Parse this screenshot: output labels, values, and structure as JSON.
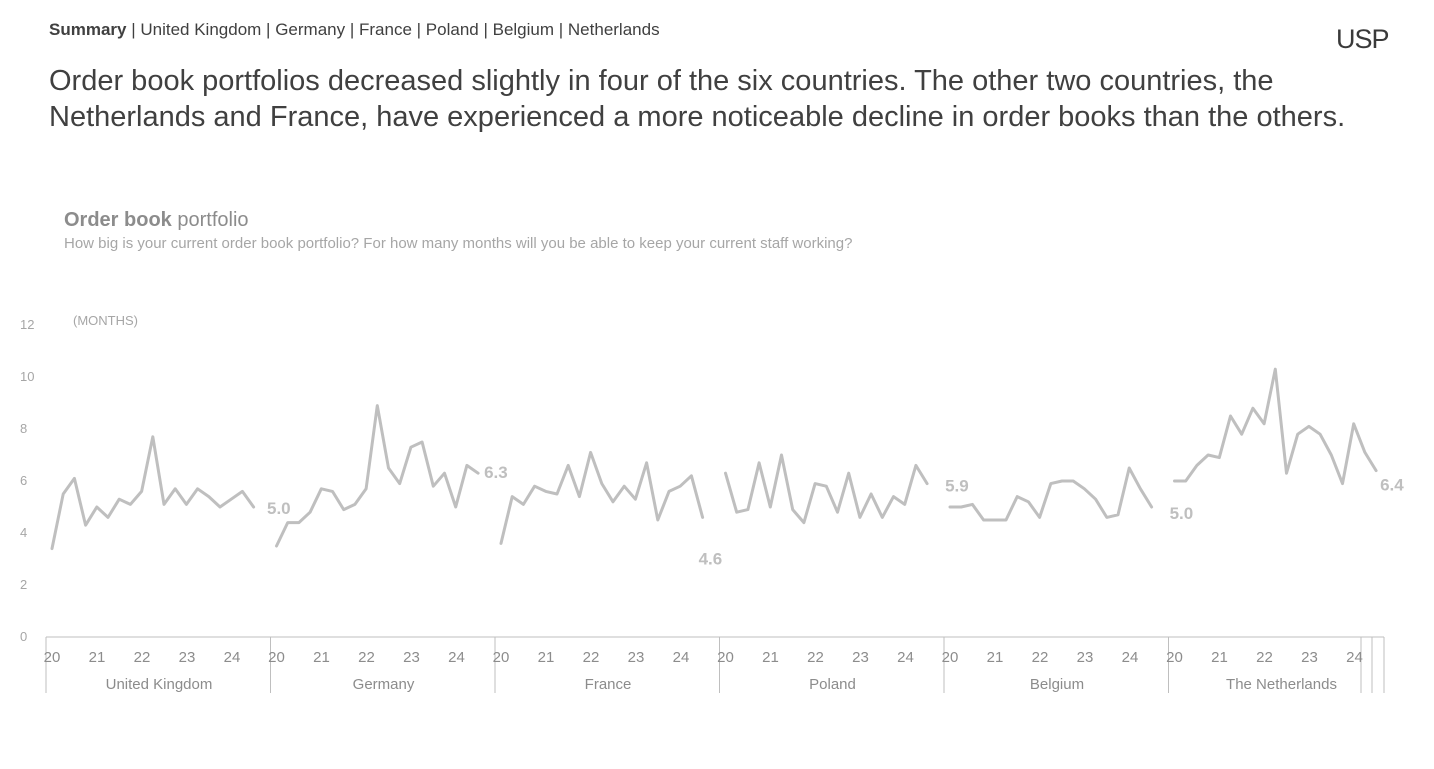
{
  "nav": {
    "items": [
      "Summary",
      "United Kingdom",
      "Germany",
      "France",
      "Poland",
      "Belgium",
      "Netherlands"
    ],
    "active": "Summary",
    "separator": "|"
  },
  "logo": {
    "text": "USP"
  },
  "headline": "Order book portfolios decreased slightly in four of the six countries. The other two countries, the Netherlands and France, have experienced a more noticeable decline in order books than the others.",
  "chart_data": {
    "type": "line",
    "title_bold": "Order book",
    "title_rest": " portfolio",
    "subtitle": "How big is your current order book portfolio? For how many months will you be able to keep your current staff working?",
    "unit_label": "(MONTHS)",
    "ylim": [
      0,
      12
    ],
    "yticks": [
      "0",
      "2",
      "4",
      "6",
      "8",
      "10",
      "12"
    ],
    "year_ticks": [
      "20",
      "21",
      "22",
      "23",
      "24"
    ],
    "line_color": "#bfbfbf",
    "series": [
      {
        "name": "United Kingdom",
        "last_label": "",
        "values": [
          3.4,
          5.5,
          6.1,
          4.3,
          5.0,
          4.6,
          5.3,
          5.1,
          5.6,
          7.7,
          5.1,
          5.7,
          5.1,
          5.7,
          5.4,
          5.0,
          5.3,
          5.6,
          5.0
        ]
      },
      {
        "name": "Germany",
        "last_label": "6.3",
        "values": [
          3.5,
          4.4,
          4.4,
          4.8,
          5.7,
          5.6,
          4.9,
          5.1,
          5.7,
          8.9,
          6.5,
          5.9,
          7.3,
          7.5,
          5.8,
          6.3,
          5.0,
          6.6,
          6.3
        ]
      },
      {
        "name": "France",
        "last_label": "4.6",
        "values": [
          3.6,
          5.4,
          5.1,
          5.8,
          5.6,
          5.5,
          6.6,
          5.4,
          7.1,
          5.9,
          5.2,
          5.8,
          5.3,
          6.7,
          4.5,
          5.6,
          5.8,
          6.2,
          4.6
        ]
      },
      {
        "name": "Poland",
        "last_label": "5.9",
        "values": [
          6.3,
          4.8,
          4.9,
          6.7,
          5.0,
          7.0,
          4.9,
          4.4,
          5.9,
          5.8,
          4.8,
          6.3,
          4.6,
          5.5,
          4.6,
          5.4,
          5.1,
          6.6,
          5.9
        ]
      },
      {
        "name": "Belgium",
        "last_label": "5.0",
        "values": [
          5.0,
          5.0,
          5.1,
          4.5,
          4.5,
          4.5,
          5.4,
          5.2,
          4.6,
          5.9,
          6.0,
          6.0,
          5.7,
          5.3,
          4.6,
          4.7,
          6.5,
          5.7,
          5.0
        ]
      },
      {
        "name": "The Netherlands",
        "last_label": "6.4",
        "values": [
          6.0,
          6.0,
          6.6,
          7.0,
          6.9,
          8.5,
          7.8,
          8.8,
          8.2,
          10.3,
          6.3,
          7.8,
          8.1,
          7.8,
          7.0,
          5.9,
          8.2,
          7.1,
          6.4
        ]
      }
    ],
    "extra_labels": [
      {
        "text": "5.0",
        "group": 1
      }
    ],
    "grid": false,
    "legend": "none"
  }
}
